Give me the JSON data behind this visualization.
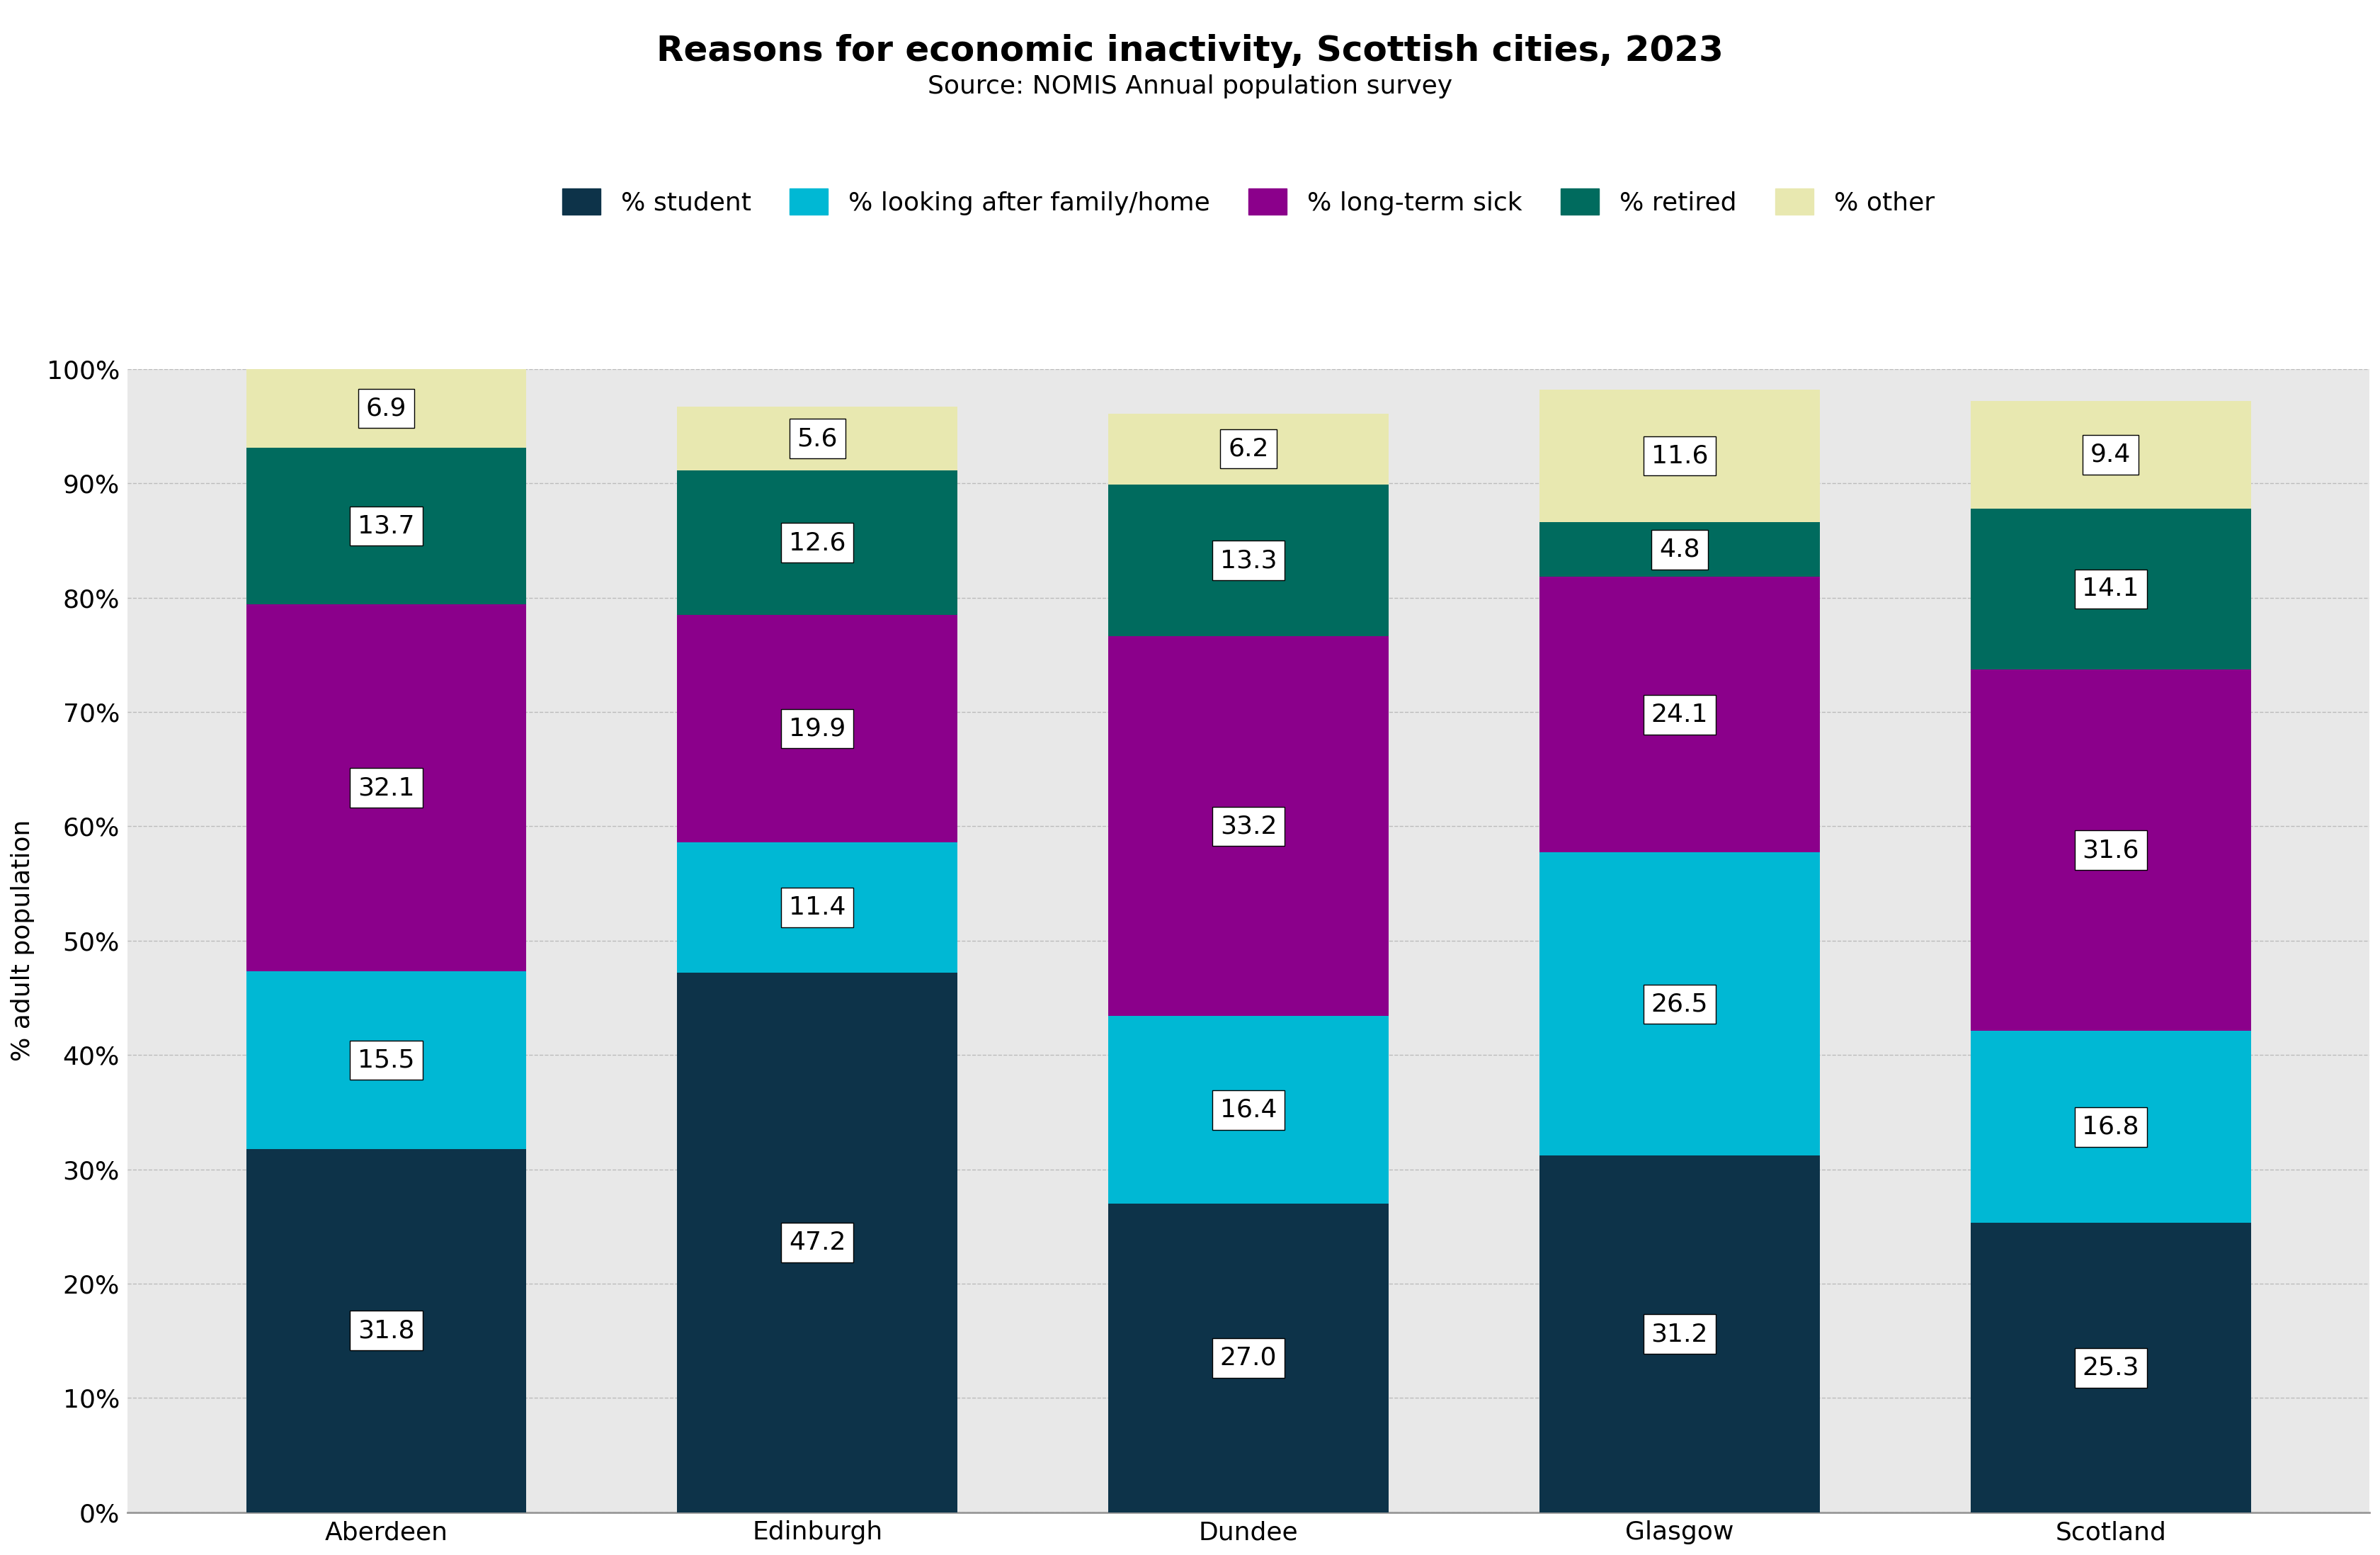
{
  "title": "Reasons for economic inactivity, Scottish cities, 2023",
  "subtitle": "Source: NOMIS Annual population survey",
  "categories": [
    "Aberdeen",
    "Edinburgh",
    "Dundee",
    "Glasgow",
    "Scotland"
  ],
  "series": {
    "student": [
      31.8,
      47.2,
      27.0,
      31.2,
      25.3
    ],
    "looking_after": [
      15.5,
      11.4,
      16.4,
      26.5,
      16.8
    ],
    "long_term_sick": [
      32.1,
      19.9,
      33.2,
      24.1,
      31.6
    ],
    "retired": [
      13.7,
      12.6,
      13.3,
      4.8,
      14.1
    ],
    "other": [
      6.9,
      5.6,
      6.2,
      11.6,
      9.4
    ]
  },
  "colors": {
    "student": "#0d3349",
    "looking_after": "#00b8d4",
    "long_term_sick": "#8b008b",
    "retired": "#006b5e",
    "other": "#e8e8b0"
  },
  "legend_labels": {
    "student": "% student",
    "looking_after": "% looking after family/home",
    "long_term_sick": "% long-term sick",
    "retired": "% retired",
    "other": "% other"
  },
  "ylabel": "% adult population",
  "ylim": [
    0,
    100
  ],
  "yticks": [
    0,
    10,
    20,
    30,
    40,
    50,
    60,
    70,
    80,
    90,
    100
  ],
  "ytick_labels": [
    "0%",
    "10%",
    "20%",
    "30%",
    "40%",
    "50%",
    "60%",
    "70%",
    "80%",
    "90%",
    "100%"
  ],
  "plot_background": "#e8e8e8",
  "fig_background": "white",
  "title_fontsize": 36,
  "subtitle_fontsize": 26,
  "label_fontsize": 26,
  "tick_fontsize": 26,
  "legend_fontsize": 26,
  "annotation_fontsize": 26,
  "bar_width": 0.65
}
